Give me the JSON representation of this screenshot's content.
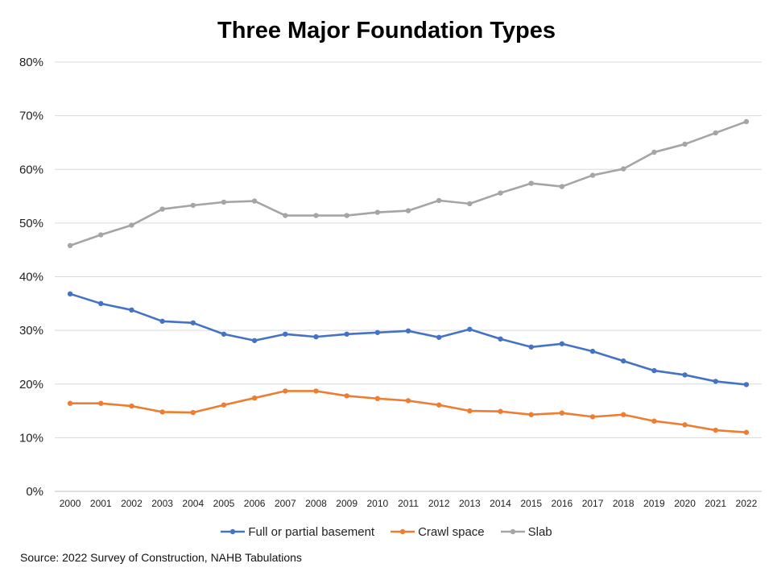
{
  "chart_data": {
    "type": "line",
    "title": "Three Major Foundation Types",
    "xlabel": "",
    "ylabel": "",
    "ylim": [
      0,
      80
    ],
    "y_tick_step": 10,
    "y_tick_suffix": "%",
    "grid": true,
    "legend_position": "bottom",
    "x": [
      "2000",
      "2001",
      "2002",
      "2003",
      "2004",
      "2005",
      "2006",
      "2007",
      "2008",
      "2009",
      "2010",
      "2011",
      "2012",
      "2013",
      "2014",
      "2015",
      "2016",
      "2017",
      "2018",
      "2019",
      "2020",
      "2021",
      "2022"
    ],
    "series": [
      {
        "name": "Full or partial basement",
        "color": "#4472C4",
        "values": [
          36.8,
          35.0,
          33.8,
          31.7,
          31.4,
          29.3,
          28.1,
          29.3,
          28.8,
          29.3,
          29.6,
          29.9,
          28.7,
          30.2,
          28.4,
          26.9,
          27.5,
          26.1,
          24.3,
          22.5,
          21.7,
          20.5,
          19.9
        ]
      },
      {
        "name": "Crawl space",
        "color": "#ED7D31",
        "values": [
          16.4,
          16.4,
          15.9,
          14.8,
          14.7,
          16.1,
          17.4,
          18.7,
          18.7,
          17.8,
          17.3,
          16.9,
          16.1,
          15.0,
          14.9,
          14.3,
          14.6,
          13.9,
          14.3,
          13.1,
          12.4,
          11.4,
          11.0
        ]
      },
      {
        "name": "Slab",
        "color": "#A5A5A5",
        "values": [
          45.8,
          47.8,
          49.6,
          52.6,
          53.3,
          53.9,
          54.1,
          51.4,
          51.4,
          51.4,
          52.0,
          52.3,
          54.2,
          53.6,
          55.6,
          57.4,
          56.8,
          58.9,
          60.1,
          63.2,
          64.7,
          66.8,
          68.9
        ]
      }
    ],
    "source": "Source: 2022 Survey of Construction, NAHB Tabulations"
  }
}
